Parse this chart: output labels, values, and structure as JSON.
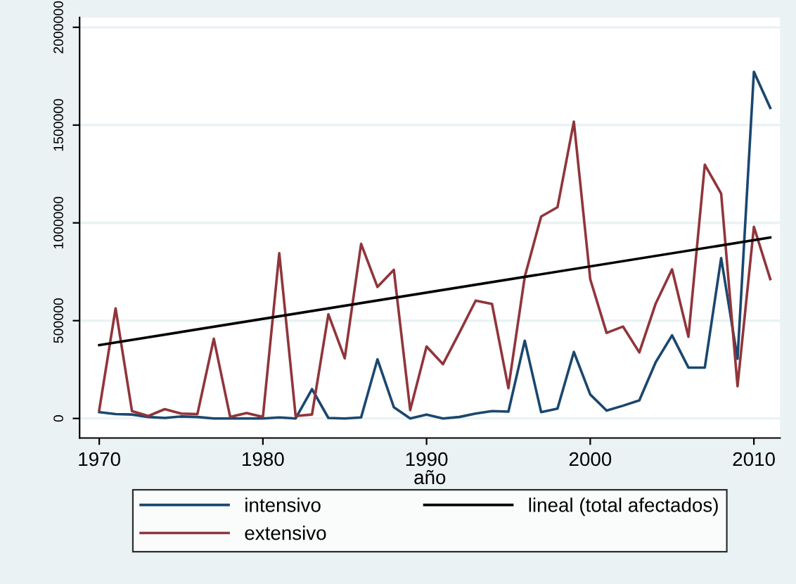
{
  "chart_data": {
    "type": "line",
    "xlabel": "año",
    "x": [
      1970,
      1971,
      1972,
      1973,
      1974,
      1975,
      1976,
      1977,
      1978,
      1979,
      1980,
      1981,
      1982,
      1983,
      1984,
      1985,
      1986,
      1987,
      1988,
      1989,
      1990,
      1991,
      1992,
      1993,
      1994,
      1995,
      1996,
      1997,
      1998,
      1999,
      2000,
      2001,
      2002,
      2003,
      2004,
      2005,
      2006,
      2007,
      2008,
      2009,
      2010,
      2011
    ],
    "series": [
      {
        "name": "intensivo",
        "color": "#1a476f",
        "values": [
          32500,
          22500,
          20000,
          7500,
          2500,
          10000,
          7500,
          0,
          0,
          0,
          0,
          5000,
          0,
          150000,
          2500,
          0,
          5000,
          302500,
          57500,
          0,
          20000,
          0,
          7500,
          25000,
          37500,
          35000,
          397500,
          32500,
          50000,
          340000,
          122500,
          40000,
          65000,
          92500,
          287500,
          425000,
          260000,
          260000,
          820000,
          305000,
          1772500,
          1587500
        ]
      },
      {
        "name": "extensivo",
        "color": "#90353b",
        "values": [
          42500,
          562500,
          37500,
          12500,
          47500,
          25000,
          22500,
          407500,
          7500,
          27500,
          7500,
          845000,
          12500,
          20000,
          532500,
          307500,
          892500,
          672500,
          760000,
          42500,
          367500,
          277500,
          437500,
          602500,
          585000,
          155000,
          725000,
          1032500,
          1080000,
          1517500,
          712500,
          437500,
          470000,
          337500,
          587500,
          762500,
          417500,
          1297500,
          1150000,
          165000,
          980000,
          712500
        ]
      },
      {
        "name": "lineal (total afectados)",
        "color": "#000000",
        "x": [
          1970,
          2011
        ],
        "values": [
          375000,
          925000
        ]
      }
    ],
    "xlim": [
      1968.8,
      2011.6
    ],
    "xticks": [
      1970,
      1980,
      1990,
      2000,
      2010
    ],
    "ylim": [
      -100000,
      2050000
    ],
    "yticks": [
      0,
      500000,
      1000000,
      1500000,
      2000000
    ],
    "grid": "y",
    "legend": "bottom"
  }
}
